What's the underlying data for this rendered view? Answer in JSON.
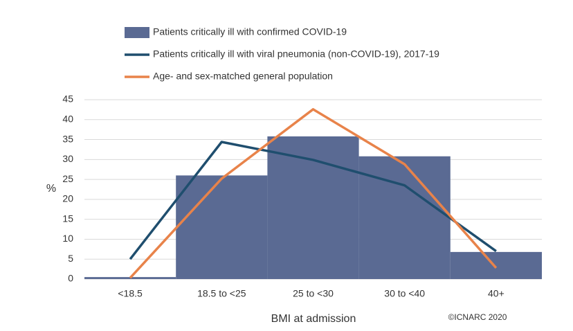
{
  "chart_data": {
    "type": "combo",
    "categories": [
      "<18.5",
      "18.5 to <25",
      "25 to <30",
      "30 to <40",
      "40+"
    ],
    "series": [
      {
        "name": "Patients critically ill with confirmed COVID-19",
        "type": "bar",
        "color": "#5a6a93",
        "values": [
          0.5,
          26,
          35.8,
          30.8,
          6.8
        ]
      },
      {
        "name": "Patients critically ill with viral pneumonia (non-COVID-19), 2017-19",
        "type": "line",
        "color": "#1f4e6e",
        "values": [
          5,
          34.4,
          29.9,
          23.5,
          7
        ]
      },
      {
        "name": "Age- and sex-matched general population",
        "type": "line",
        "color": "#e8834a",
        "values": [
          0.3,
          25.2,
          42.6,
          28.8,
          2.8
        ]
      }
    ],
    "ylabel": "%",
    "xlabel": "BMI at admission",
    "ylim": [
      0,
      45
    ],
    "yticks": [
      0,
      5,
      10,
      15,
      20,
      25,
      30,
      35,
      40,
      45
    ],
    "grid": true,
    "legend": "top",
    "annotation": "©ICNARC 2020"
  }
}
